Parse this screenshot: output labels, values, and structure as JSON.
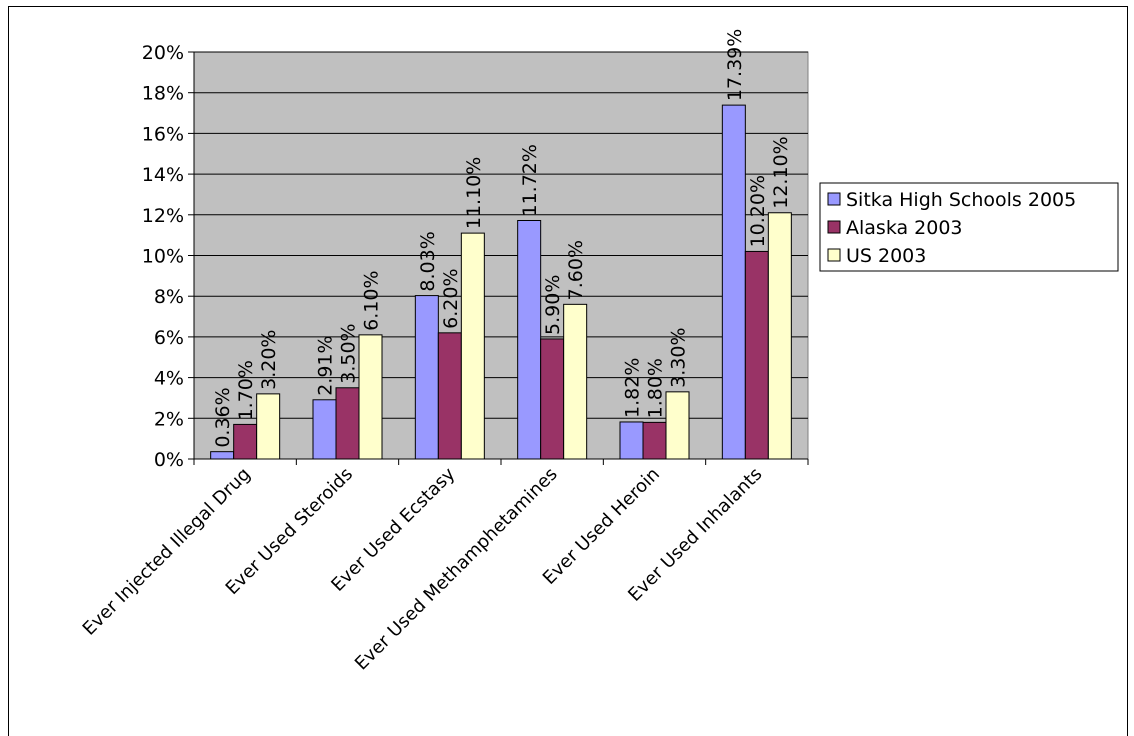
{
  "chart_data": {
    "type": "bar",
    "categories": [
      "Ever Injected Illegal Drug",
      "Ever Used Steroids",
      "Ever Used Ecstasy",
      "Ever Used Methamphetamines",
      "Ever Used Heroin",
      "Ever Used Inhalants"
    ],
    "series": [
      {
        "name": "Sitka High Schools 2005",
        "color": "#9999ff",
        "values": [
          0.36,
          2.91,
          8.03,
          11.72,
          1.82,
          17.39
        ],
        "labels": [
          "0.36%",
          "2.91%",
          "8.03%",
          "11.72%",
          "1.82%",
          "17.39%"
        ]
      },
      {
        "name": "Alaska 2003",
        "color": "#993366",
        "values": [
          1.7,
          3.5,
          6.2,
          5.9,
          1.8,
          10.2
        ],
        "labels": [
          "1.70%",
          "3.50%",
          "6.20%",
          "5.90%",
          "1.80%",
          "10.20%"
        ]
      },
      {
        "name": "US 2003",
        "color": "#ffffcc",
        "values": [
          3.2,
          6.1,
          11.1,
          7.6,
          3.3,
          12.1
        ],
        "labels": [
          "3.20%",
          "6.10%",
          "11.10%",
          "7.60%",
          "3.30%",
          "12.10%"
        ]
      }
    ],
    "yticks": [
      "0%",
      "2%",
      "4%",
      "6%",
      "8%",
      "10%",
      "12%",
      "14%",
      "16%",
      "18%",
      "20%"
    ],
    "ylim": [
      0,
      20
    ],
    "title": "",
    "xlabel": "",
    "ylabel": "",
    "grid": true,
    "plot_background": "#c0c0c0",
    "legend_position": "right"
  }
}
